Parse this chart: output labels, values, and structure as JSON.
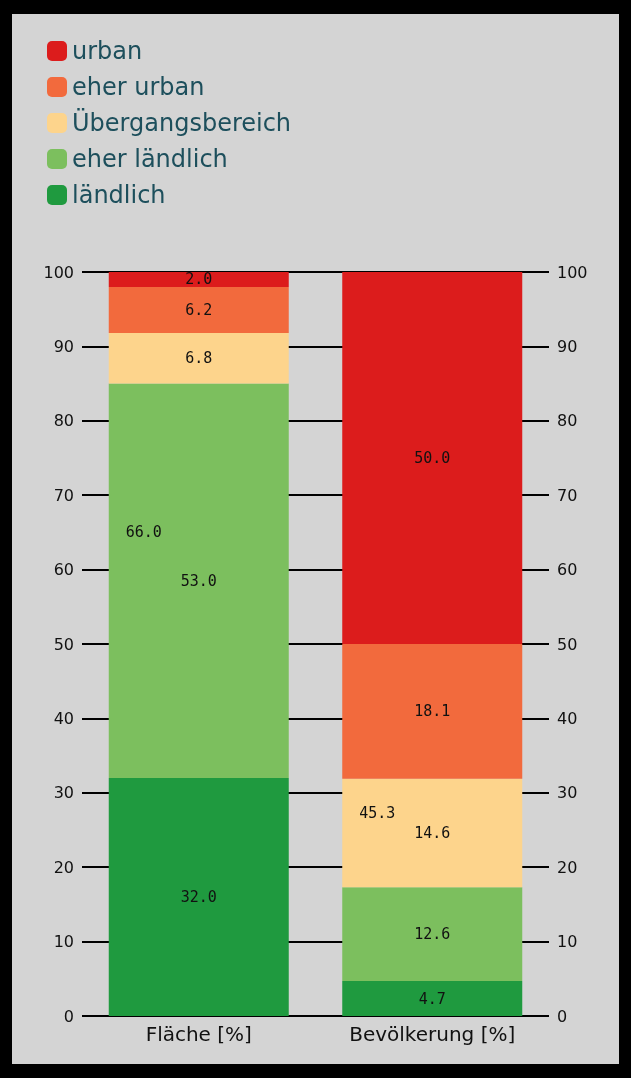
{
  "chart_data": {
    "type": "bar",
    "stacked": true,
    "categories": [
      "Fläche [%]",
      "Bevölkerung [%]"
    ],
    "series": [
      {
        "name": "ländlich",
        "color": "#1f9a3f",
        "values": [
          32.0,
          4.7
        ],
        "value_labels": [
          "32.0",
          "4.7"
        ]
      },
      {
        "name": "eher ländlich",
        "color": "#7cbf5e",
        "values": [
          53.0,
          12.6
        ],
        "value_labels": [
          "53.0",
          "12.6"
        ]
      },
      {
        "name": "Übergangsbereich",
        "color": "#fdd48c",
        "values": [
          6.8,
          14.6
        ],
        "value_labels": [
          "6.8",
          "14.6"
        ]
      },
      {
        "name": "eher urban",
        "color": "#f26a3d",
        "values": [
          6.2,
          18.1
        ],
        "value_labels": [
          "6.2",
          "18.1"
        ]
      },
      {
        "name": "urban",
        "color": "#dc1c1c",
        "values": [
          2.0,
          50.0
        ],
        "value_labels": [
          "2.0",
          "50.0"
        ]
      }
    ],
    "ylim": [
      0,
      100
    ],
    "yticks": [
      0,
      10,
      20,
      30,
      40,
      50,
      60,
      70,
      80,
      90,
      100
    ],
    "y2lim": [
      0,
      100
    ],
    "y2ticks": [
      0,
      10,
      20,
      30,
      40,
      50,
      60,
      70,
      80,
      90,
      100
    ],
    "grid": "y",
    "legend": "top left",
    "annotations": [
      "66.0",
      "45.3"
    ]
  }
}
